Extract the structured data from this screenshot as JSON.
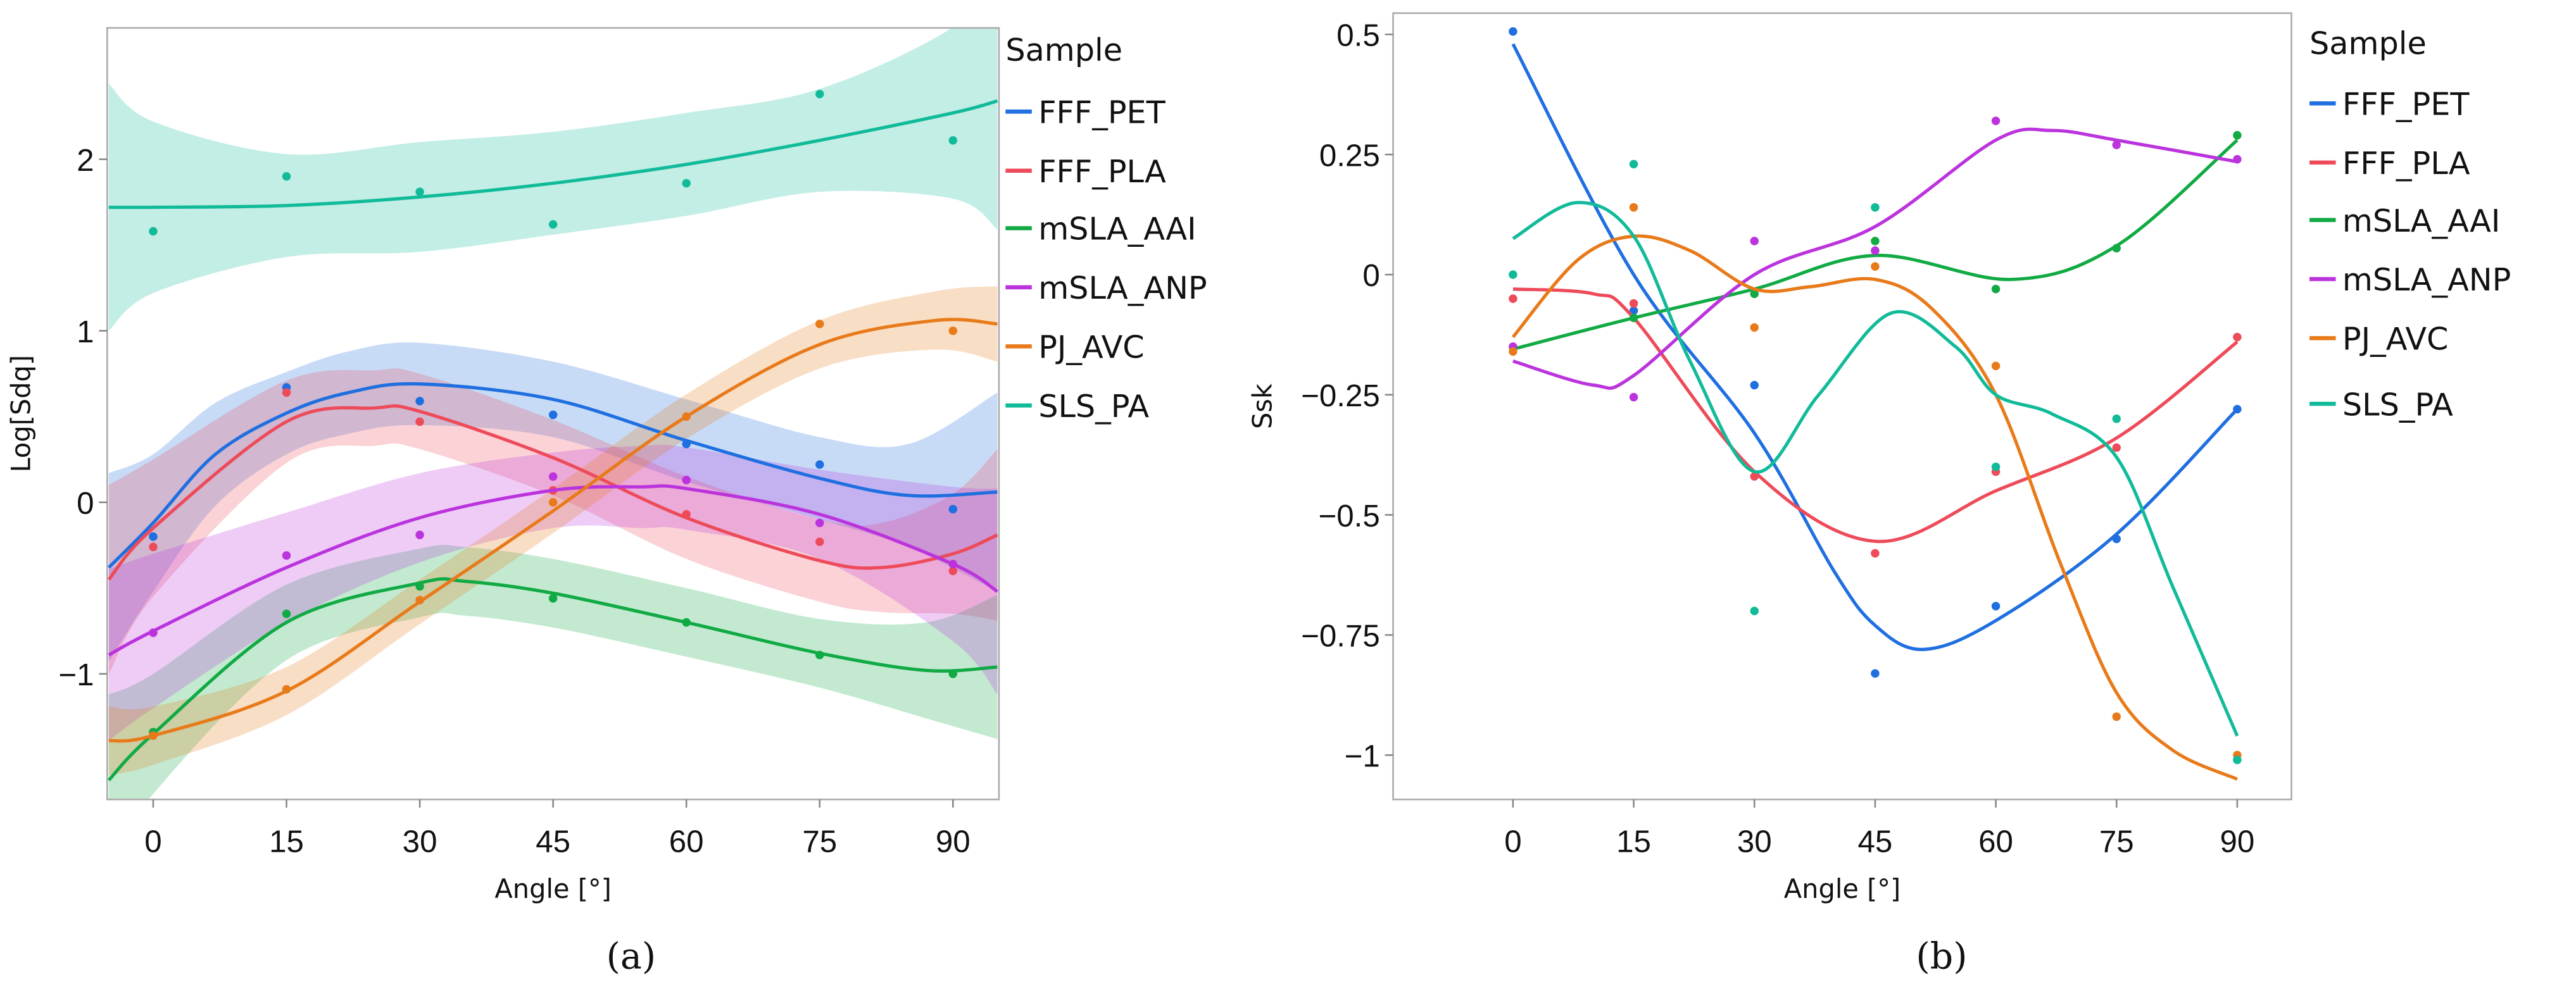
{
  "chart_data": [
    {
      "type": "line",
      "panel_label": "(a)",
      "xlabel": "Angle [°]",
      "ylabel": "Log[Sdq]",
      "xlim": [
        -5,
        95
      ],
      "ylim": [
        -1.72,
        2.75
      ],
      "xticks": [
        0,
        15,
        30,
        45,
        60,
        75,
        90
      ],
      "yticks": [
        -1,
        0,
        1,
        2
      ],
      "yticklabels": [
        "−1",
        "0",
        "1",
        "2"
      ],
      "legend_title": "Sample",
      "legend_position": "right",
      "x": [
        0,
        15,
        30,
        45,
        60,
        75,
        90
      ],
      "series": [
        {
          "name": "FFF_PET",
          "color": "#1f6fe0",
          "points": [
            -0.2,
            0.67,
            0.59,
            0.51,
            0.34,
            0.22,
            -0.04
          ],
          "fit_x": [
            -5,
            0,
            7,
            15,
            22,
            30,
            45,
            60,
            75,
            85,
            95
          ],
          "fit": [
            -0.38,
            -0.12,
            0.28,
            0.52,
            0.64,
            0.69,
            0.6,
            0.36,
            0.14,
            0.04,
            0.06
          ],
          "ci": [
            0.55,
            0.4,
            0.3,
            0.24,
            0.24,
            0.24,
            0.22,
            0.24,
            0.24,
            0.3,
            0.58
          ]
        },
        {
          "name": "FFF_PLA",
          "color": "#ee4b5a",
          "points": [
            -0.26,
            0.64,
            0.47,
            0.07,
            -0.07,
            -0.23,
            -0.4
          ],
          "fit_x": [
            -5,
            0,
            15,
            25,
            30,
            45,
            60,
            75,
            82,
            90,
            95
          ],
          "fit": [
            -0.45,
            -0.15,
            0.47,
            0.55,
            0.53,
            0.26,
            -0.09,
            -0.34,
            -0.38,
            -0.3,
            -0.19
          ],
          "ci": [
            0.55,
            0.4,
            0.24,
            0.22,
            0.22,
            0.22,
            0.24,
            0.24,
            0.26,
            0.35,
            0.5
          ]
        },
        {
          "name": "mSLA_AAI",
          "color": "#11aa44",
          "points": [
            -1.34,
            -0.65,
            -0.49,
            -0.56,
            -0.7,
            -0.89,
            -1.0
          ],
          "fit_x": [
            -5,
            0,
            15,
            30,
            35,
            45,
            60,
            75,
            87,
            95
          ],
          "fit": [
            -1.62,
            -1.35,
            -0.7,
            -0.47,
            -0.46,
            -0.53,
            -0.7,
            -0.88,
            -0.98,
            -0.96
          ],
          "ci": [
            0.5,
            0.35,
            0.22,
            0.2,
            0.2,
            0.2,
            0.2,
            0.2,
            0.28,
            0.42
          ]
        },
        {
          "name": "mSLA_ANP",
          "color": "#bb33dd",
          "points": [
            -0.76,
            -0.31,
            -0.19,
            0.15,
            0.13,
            -0.12,
            -0.36
          ],
          "fit_x": [
            -5,
            0,
            15,
            30,
            45,
            55,
            60,
            75,
            90,
            95
          ],
          "fit": [
            -0.89,
            -0.75,
            -0.38,
            -0.09,
            0.07,
            0.09,
            0.08,
            -0.07,
            -0.36,
            -0.52
          ],
          "ci": [
            0.5,
            0.45,
            0.32,
            0.26,
            0.22,
            0.24,
            0.24,
            0.26,
            0.45,
            0.6
          ]
        },
        {
          "name": "PJ_AVC",
          "color": "#e87a1a",
          "points": [
            -1.36,
            -1.09,
            -0.57,
            0.0,
            0.5,
            1.04,
            1.0
          ],
          "fit_x": [
            -5,
            0,
            15,
            30,
            45,
            60,
            75,
            88,
            95
          ],
          "fit": [
            -1.39,
            -1.36,
            -1.1,
            -0.58,
            -0.05,
            0.5,
            0.92,
            1.06,
            1.04
          ],
          "ci": [
            0.2,
            0.17,
            0.14,
            0.13,
            0.13,
            0.13,
            0.14,
            0.17,
            0.22
          ]
        },
        {
          "name": "SLS_PA",
          "color": "#11bb99",
          "points": [
            1.58,
            1.9,
            1.81,
            1.62,
            1.86,
            2.38,
            2.11
          ],
          "fit_x": [
            -5,
            0,
            15,
            30,
            45,
            60,
            75,
            90,
            95
          ],
          "fit": [
            1.72,
            1.72,
            1.73,
            1.78,
            1.86,
            1.97,
            2.11,
            2.27,
            2.34
          ],
          "ci": [
            0.72,
            0.5,
            0.3,
            0.32,
            0.3,
            0.3,
            0.3,
            0.5,
            0.75
          ]
        }
      ]
    },
    {
      "type": "line",
      "panel_label": "(b)",
      "xlabel": "Angle [°]",
      "ylabel": "Ssk",
      "xlim": [
        -5,
        95
      ],
      "ylim": [
        -1.09,
        0.55
      ],
      "xticks": [
        0,
        15,
        30,
        45,
        60,
        75,
        90
      ],
      "yticks": [
        0.5,
        0.25,
        0,
        -0.25,
        -0.5,
        -0.75,
        -1
      ],
      "yticklabels": [
        "0.5",
        "0.25",
        "0",
        "−0.25",
        "−0.5",
        "−0.75",
        "−1"
      ],
      "legend_title": "Sample",
      "legend_position": "right",
      "x": [
        0,
        15,
        30,
        45,
        60,
        75,
        90
      ],
      "series": [
        {
          "name": "FFF_PET",
          "color": "#1f6fe0",
          "points": [
            0.506,
            -0.075,
            -0.23,
            -0.83,
            -0.69,
            -0.55,
            -0.28
          ],
          "fit_x": [
            0,
            15,
            30,
            40,
            45,
            51,
            60,
            75,
            90
          ],
          "fit": [
            0.48,
            0.0,
            -0.33,
            -0.62,
            -0.73,
            -0.78,
            -0.72,
            -0.54,
            -0.28
          ]
        },
        {
          "name": "FFF_PLA",
          "color": "#ee4b5a",
          "points": [
            -0.05,
            -0.06,
            -0.42,
            -0.58,
            -0.41,
            -0.36,
            -0.13
          ],
          "fit_x": [
            0,
            10,
            15,
            30,
            45,
            60,
            75,
            90
          ],
          "fit": [
            -0.03,
            -0.04,
            -0.09,
            -0.41,
            -0.555,
            -0.45,
            -0.34,
            -0.14
          ]
        },
        {
          "name": "mSLA_AAI",
          "color": "#11aa44",
          "points": [
            -0.15,
            -0.09,
            -0.04,
            0.07,
            -0.03,
            0.055,
            0.29
          ],
          "fit_x": [
            0,
            15,
            30,
            45,
            62,
            75,
            90
          ],
          "fit": [
            -0.155,
            -0.09,
            -0.03,
            0.04,
            -0.01,
            0.06,
            0.28
          ]
        },
        {
          "name": "mSLA_ANP",
          "color": "#bb33dd",
          "points": [
            -0.15,
            -0.255,
            0.07,
            0.05,
            0.32,
            0.27,
            0.24
          ],
          "fit_x": [
            0,
            10,
            15,
            30,
            45,
            60,
            67,
            75,
            90
          ],
          "fit": [
            -0.18,
            -0.23,
            -0.21,
            0.0,
            0.1,
            0.28,
            0.3,
            0.28,
            0.235
          ]
        },
        {
          "name": "PJ_AVC",
          "color": "#e87a1a",
          "points": [
            -0.16,
            0.14,
            -0.11,
            0.017,
            -0.19,
            -0.92,
            -1.0
          ],
          "fit_x": [
            0,
            8,
            15,
            22,
            30,
            37,
            45,
            52,
            60,
            68,
            75,
            82,
            90
          ],
          "fit": [
            -0.13,
            0.03,
            0.08,
            0.05,
            -0.03,
            -0.025,
            -0.01,
            -0.07,
            -0.25,
            -0.6,
            -0.87,
            -0.99,
            -1.05
          ]
        },
        {
          "name": "SLS_PA",
          "color": "#11bb99",
          "points": [
            0.0,
            0.23,
            -0.7,
            0.14,
            -0.4,
            -0.3,
            -1.01
          ],
          "fit_x": [
            0,
            8,
            15,
            22,
            30,
            38,
            47,
            55,
            60,
            67,
            75,
            82,
            90
          ],
          "fit": [
            0.075,
            0.15,
            0.08,
            -0.18,
            -0.41,
            -0.25,
            -0.08,
            -0.15,
            -0.25,
            -0.29,
            -0.38,
            -0.65,
            -0.96
          ]
        }
      ]
    }
  ]
}
